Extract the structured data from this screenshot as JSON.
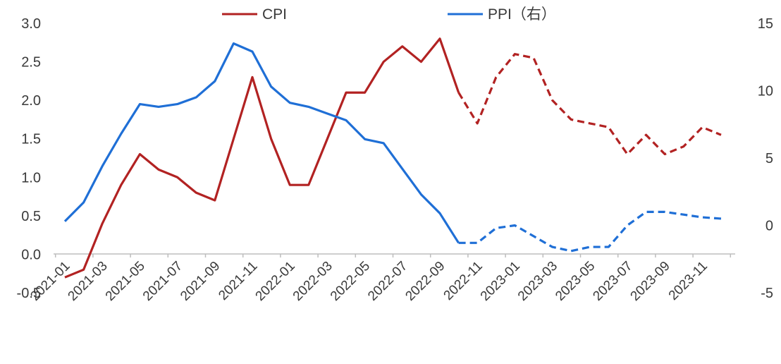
{
  "chart_data": {
    "type": "line",
    "title": "",
    "xlabel": "",
    "ylabel": "",
    "y2label": "",
    "ylim": [
      -0.5,
      3.0
    ],
    "y2lim": [
      -5,
      15
    ],
    "yticks": [
      "3.0",
      "2.5",
      "2.0",
      "1.5",
      "1.0",
      "0.5",
      "0.0",
      "-0.5"
    ],
    "yticks_values": [
      3.0,
      2.5,
      2.0,
      1.5,
      1.0,
      0.5,
      0.0,
      -0.5
    ],
    "y2ticks": [
      "15",
      "10",
      "5",
      "0",
      "-5"
    ],
    "y2ticks_values": [
      15,
      10,
      5,
      0,
      -5
    ],
    "x": [
      "2021-01",
      "2021-02",
      "2021-03",
      "2021-04",
      "2021-05",
      "2021-06",
      "2021-07",
      "2021-08",
      "2021-09",
      "2021-10",
      "2021-11",
      "2021-12",
      "2022-01",
      "2022-02",
      "2022-03",
      "2022-04",
      "2022-05",
      "2022-06",
      "2022-07",
      "2022-08",
      "2022-09",
      "2022-10",
      "2022-11",
      "2022-12",
      "2023-01",
      "2023-02",
      "2023-03",
      "2023-04",
      "2023-05",
      "2023-06",
      "2023-07",
      "2023-08",
      "2023-09",
      "2023-10",
      "2023-11",
      "2023-12"
    ],
    "x_tick_labels": [
      "2021-01",
      "2021-03",
      "2021-05",
      "2021-07",
      "2021-09",
      "2021-11",
      "2022-01",
      "2022-03",
      "2022-05",
      "2022-07",
      "2022-09",
      "2022-11",
      "2023-01",
      "2023-03",
      "2023-05",
      "2023-07",
      "2023-09",
      "2023-11"
    ],
    "legend_position": "top",
    "grid": false,
    "series": [
      {
        "name": "CPI",
        "axis": "left",
        "color": "#b22222",
        "values": [
          -0.3,
          -0.2,
          0.4,
          0.9,
          1.3,
          1.1,
          1.0,
          0.8,
          0.7,
          1.5,
          2.3,
          1.5,
          0.9,
          0.9,
          1.5,
          2.1,
          2.1,
          2.5,
          2.7,
          2.5,
          2.8,
          2.1,
          1.7,
          2.3,
          2.6,
          2.55,
          2.0,
          1.75,
          1.7,
          1.65,
          1.3,
          1.55,
          1.3,
          1.4,
          1.65,
          1.55
        ],
        "dashed_from_index": 21
      },
      {
        "name": "PPI（右）",
        "axis": "right",
        "color": "#1f6fd6",
        "values": [
          0.3,
          1.7,
          4.4,
          6.8,
          9.0,
          8.8,
          9.0,
          9.5,
          10.7,
          13.5,
          12.9,
          10.3,
          9.1,
          8.8,
          8.3,
          7.8,
          6.4,
          6.1,
          4.2,
          2.3,
          0.9,
          -1.3,
          -1.3,
          -0.2,
          0.0,
          -0.8,
          -1.6,
          -1.9,
          -1.6,
          -1.6,
          0.0,
          1.0,
          1.0,
          0.8,
          0.6,
          0.5
        ],
        "dashed_from_index": 21
      }
    ]
  }
}
